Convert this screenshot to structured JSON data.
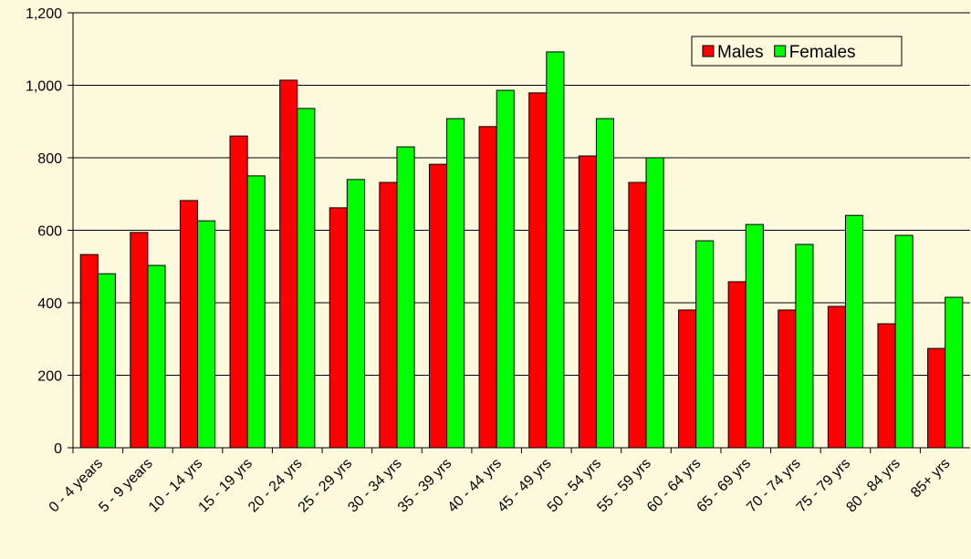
{
  "chart_data": {
    "type": "bar",
    "categories": [
      "0 - 4 years",
      "5 - 9 years",
      "10 - 14 yrs",
      "15 - 19 yrs",
      "20 - 24 yrs",
      "25 - 29 yrs",
      "30 - 34 yrs",
      "35 - 39 yrs",
      "40 - 44 yrs",
      "45 - 49 yrs",
      "50 - 54 yrs",
      "55 - 59 yrs",
      "60 - 64 yrs",
      "65 - 69 yrs",
      "70 - 74 yrs",
      "75 - 79 yrs",
      "80 - 84 yrs",
      "85+ yrs"
    ],
    "series": [
      {
        "name": "Males",
        "color": "#ff0000",
        "values": [
          533,
          594,
          682,
          860,
          1014,
          662,
          732,
          782,
          886,
          979,
          805,
          732,
          380,
          458,
          380,
          390,
          342,
          274
        ]
      },
      {
        "name": "Females",
        "color": "#00ff00",
        "values": [
          480,
          503,
          626,
          750,
          936,
          740,
          830,
          908,
          986,
          1092,
          908,
          800,
          571,
          616,
          561,
          641,
          586,
          415
        ]
      }
    ],
    "ylim": [
      0,
      1200
    ],
    "yticks": [
      0,
      200,
      400,
      600,
      800,
      {
        "value": 1000,
        "label": "1,000"
      },
      {
        "value": 1200,
        "label": "1,200"
      }
    ],
    "grid": true,
    "legend": "top-right"
  }
}
